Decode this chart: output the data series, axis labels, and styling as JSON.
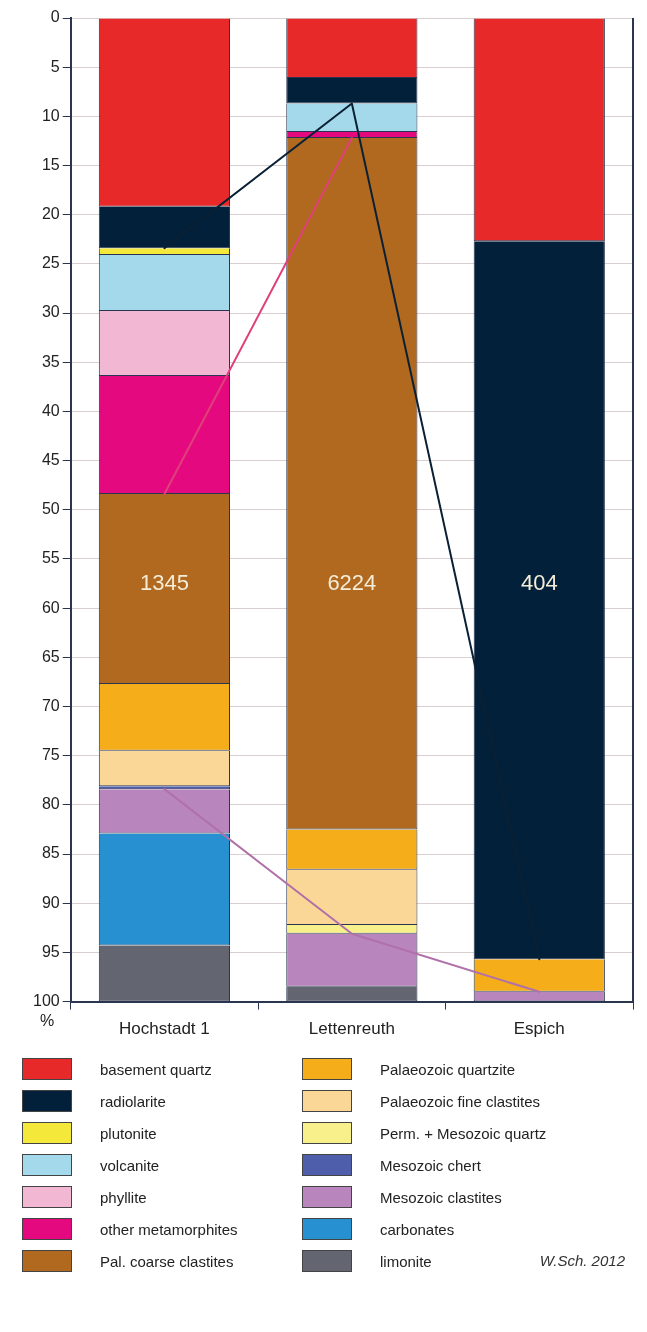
{
  "chart_data": {
    "type": "bar",
    "stacked": true,
    "ylabel": "%",
    "categories": [
      "Hochstadt 1",
      "Lettenreuth",
      "Espich"
    ],
    "ylim": [
      100,
      0
    ],
    "yticks": [
      0,
      5,
      10,
      15,
      20,
      25,
      30,
      35,
      40,
      45,
      50,
      55,
      60,
      65,
      70,
      75,
      80,
      85,
      90,
      95,
      100
    ],
    "grid": "y",
    "legend": "bottom",
    "line_style": "solid",
    "series": [
      {
        "name": "basement quartz",
        "color": "#e8292a",
        "values": [
          19.2,
          6.1,
          22.7
        ]
      },
      {
        "name": "radiolarite",
        "color": "#02203a",
        "values": [
          4.2,
          2.6,
          73.0
        ]
      },
      {
        "name": "plutonite",
        "color": "#f4e93a",
        "values": [
          0.7,
          0,
          0
        ]
      },
      {
        "name": "volcanite",
        "color": "#a3d9ea",
        "values": [
          5.7,
          2.9,
          0
        ]
      },
      {
        "name": "phyllite",
        "color": "#f2b8d3",
        "values": [
          6.6,
          0,
          0
        ]
      },
      {
        "name": "other metamorphites",
        "color": "#e5097f",
        "values": [
          12.0,
          0.6,
          0
        ]
      },
      {
        "name": "Pal. coarse clastites",
        "color": "#b0691f",
        "values": [
          19.3,
          70.3,
          0
        ]
      },
      {
        "name": "Palaeozoic quartzite",
        "color": "#f6ad1a",
        "values": [
          6.8,
          4.1,
          3.3
        ]
      },
      {
        "name": "Palaeozoic fine clastites",
        "color": "#fad797",
        "values": [
          3.6,
          5.6,
          0
        ]
      },
      {
        "name": "Perm. + Mesozoic quartz",
        "color": "#f8f08a",
        "values": [
          0,
          0.9,
          0
        ]
      },
      {
        "name": "Mesozoic chert",
        "color": "#4f5eaa",
        "values": [
          0.3,
          0,
          0
        ]
      },
      {
        "name": "Mesozoic clastites",
        "color": "#b886bd",
        "values": [
          4.5,
          5.4,
          1.0
        ]
      },
      {
        "name": "carbonates",
        "color": "#2790d0",
        "values": [
          11.4,
          0,
          0
        ]
      },
      {
        "name": "limonite",
        "color": "#636570",
        "values": [
          5.7,
          1.5,
          0
        ]
      },
      {
        "type": "line",
        "color": "#0a2035",
        "values": [
          23.4,
          8.7,
          95.7
        ]
      },
      {
        "type": "line",
        "color": "#e0407a",
        "values": [
          48.4,
          12.2,
          null
        ]
      },
      {
        "type": "line",
        "color": "#b070a8",
        "values": [
          78.4,
          93.1,
          99.0
        ]
      }
    ],
    "annotations": [
      "1345",
      "6224",
      "404",
      "W.Sch. 2012"
    ]
  }
}
